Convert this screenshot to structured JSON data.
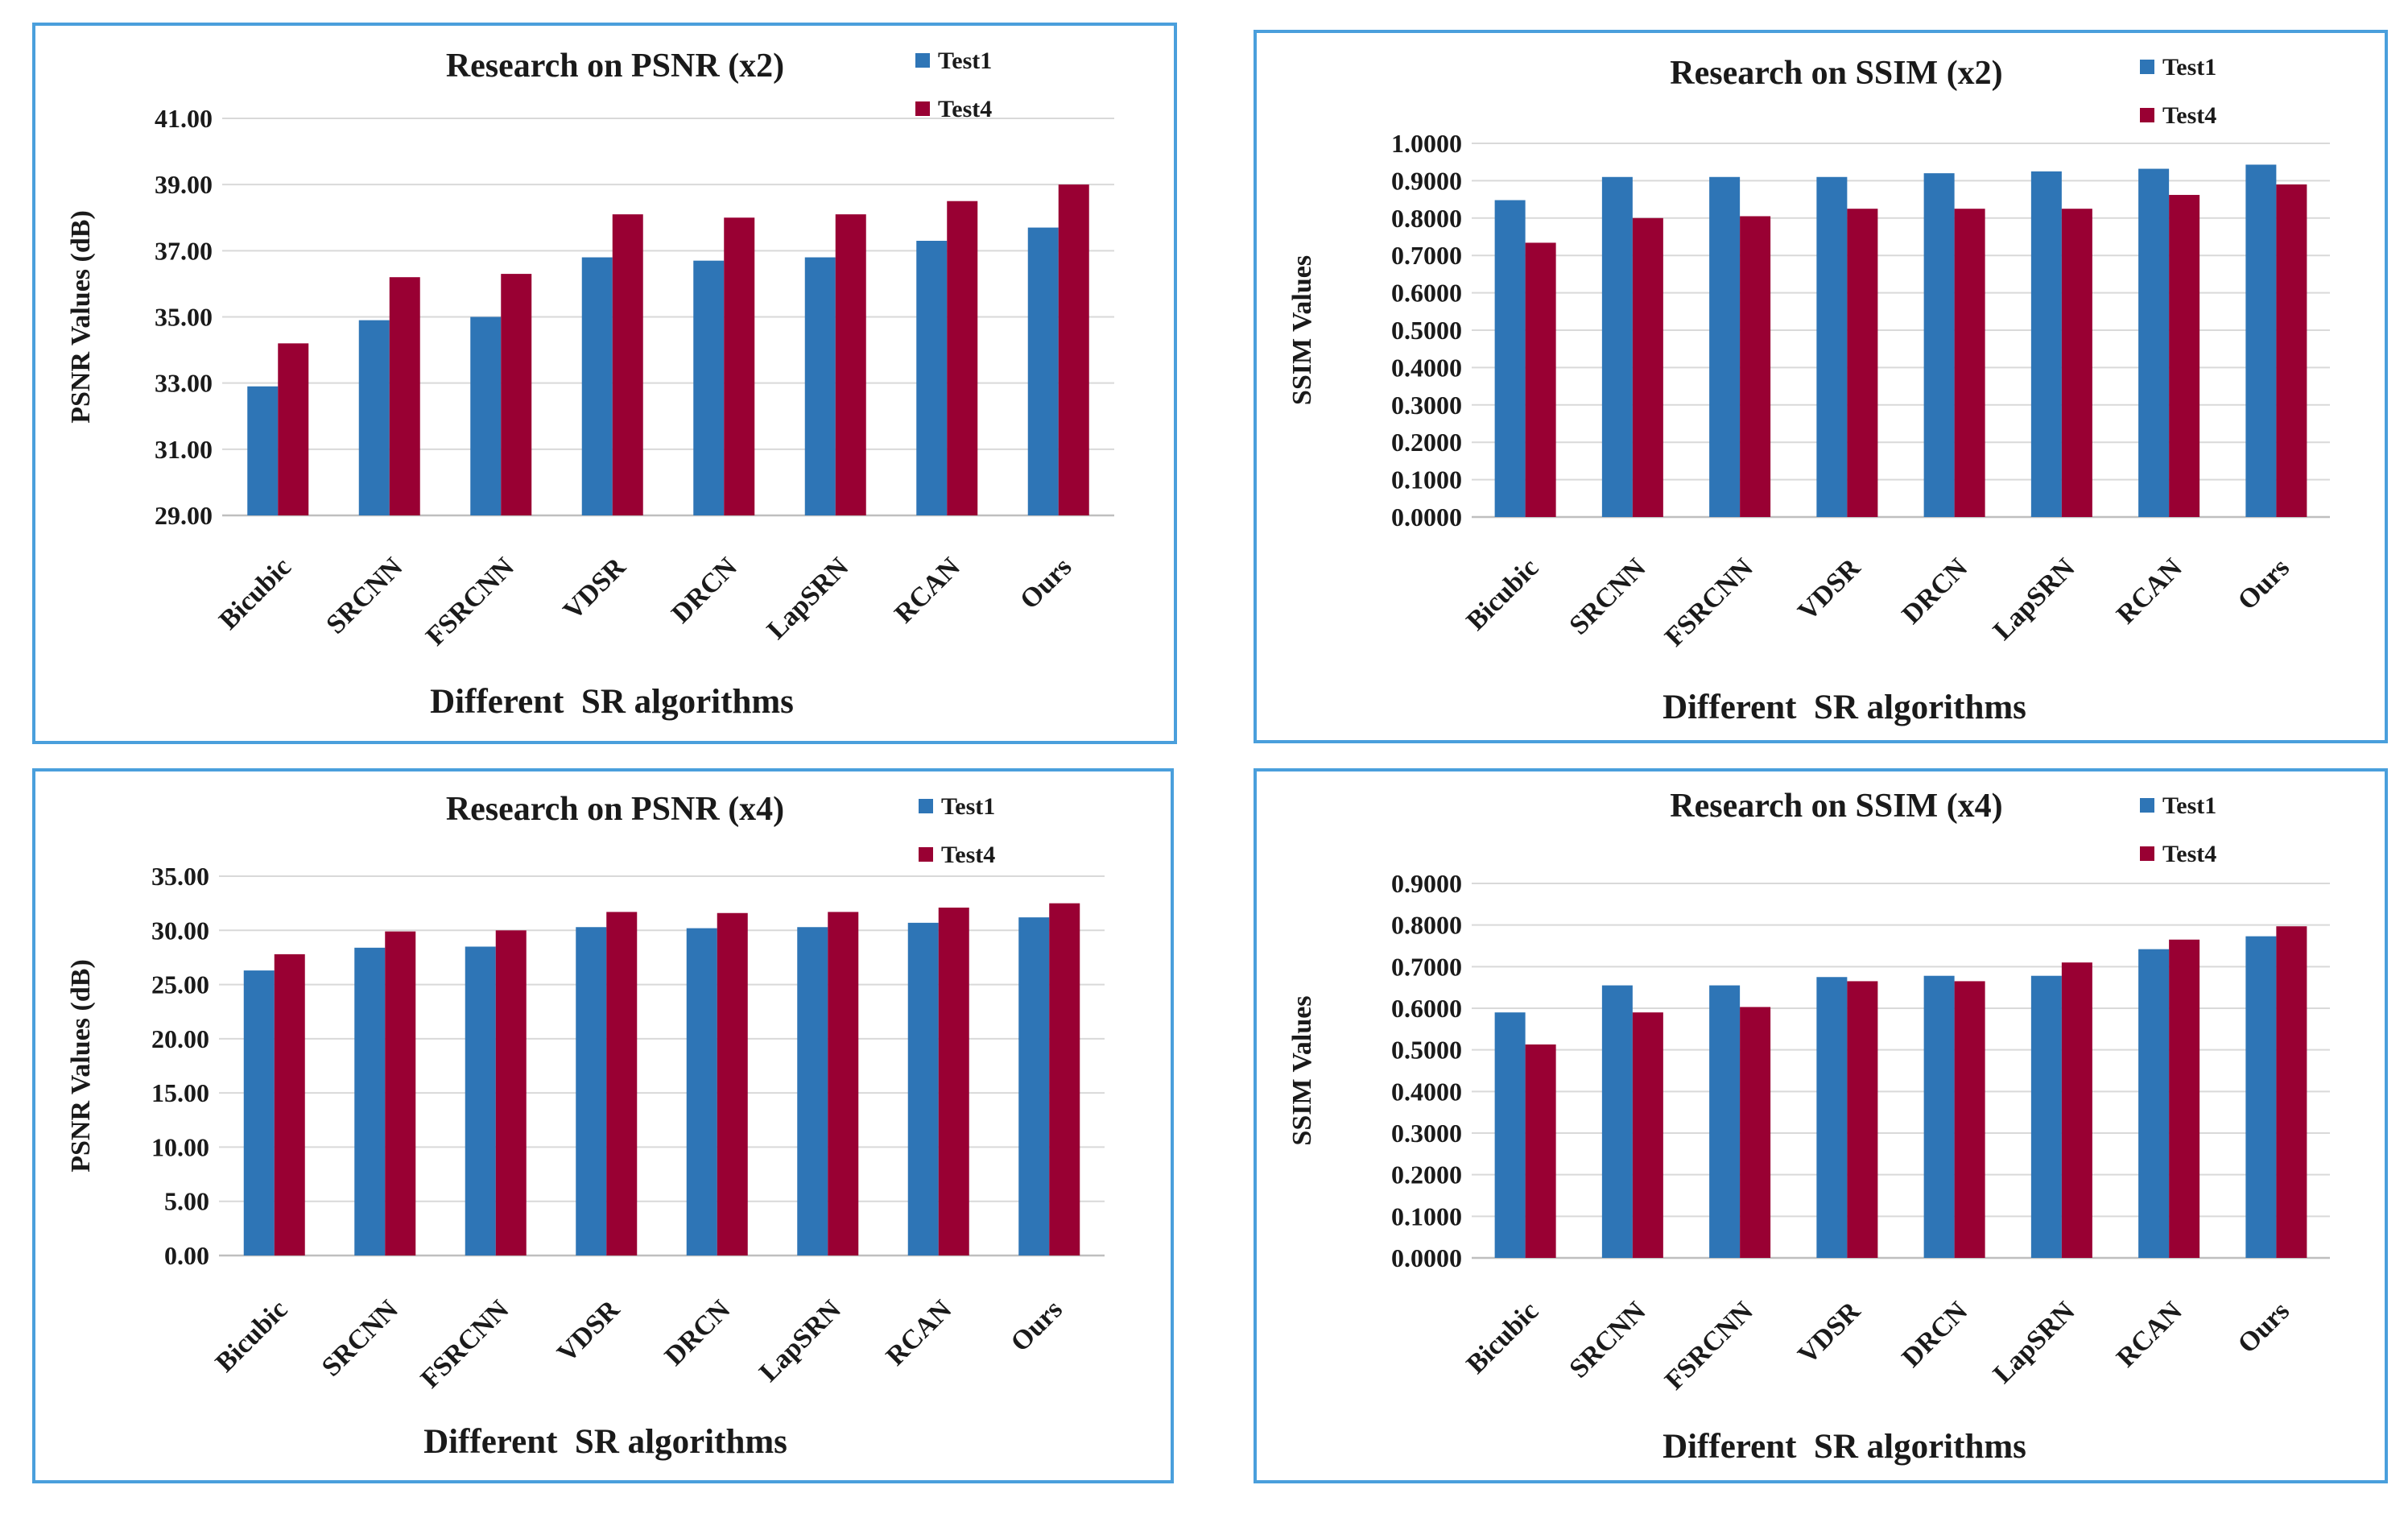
{
  "colors": {
    "test1": "#2e75b6",
    "test4": "#990033",
    "grid": "#d9d9d9",
    "border": "#4a9fdc"
  },
  "chart_data": [
    {
      "type": "bar",
      "title": "Research on PSNR (x2)",
      "xlabel": "Different  SR algorithms",
      "ylabel": "PSNR Values (dB)",
      "categories": [
        "Bicubic",
        "SRCNN",
        "FSRCNN",
        "VDSR",
        "DRCN",
        "LapSRN",
        "RCAN",
        "Ours"
      ],
      "ylim": [
        29,
        41
      ],
      "yticks": [
        "29.00",
        "31.00",
        "33.00",
        "35.00",
        "37.00",
        "39.00",
        "41.00"
      ],
      "grid": true,
      "legend": "top-right",
      "series": [
        {
          "name": "Test1",
          "values": [
            32.9,
            34.9,
            35.0,
            36.8,
            36.7,
            36.8,
            37.3,
            37.7
          ]
        },
        {
          "name": "Test4",
          "values": [
            34.2,
            36.2,
            36.3,
            38.1,
            38.0,
            38.1,
            38.5,
            39.0
          ]
        }
      ]
    },
    {
      "type": "bar",
      "title": "Research on SSIM (x2)",
      "xlabel": "Different  SR algorithms",
      "ylabel": "SSIM Values",
      "categories": [
        "Bicubic",
        "SRCNN",
        "FSRCNN",
        "VDSR",
        "DRCN",
        "LapSRN",
        "RCAN",
        "Ours"
      ],
      "ylim": [
        0,
        1
      ],
      "yticks": [
        "0.0000",
        "0.1000",
        "0.2000",
        "0.3000",
        "0.4000",
        "0.5000",
        "0.6000",
        "0.7000",
        "0.8000",
        "0.9000",
        "1.0000"
      ],
      "grid": true,
      "legend": "top-right",
      "series": [
        {
          "name": "Test1",
          "values": [
            0.848,
            0.91,
            0.91,
            0.91,
            0.92,
            0.925,
            0.932,
            0.943
          ]
        },
        {
          "name": "Test4",
          "values": [
            0.734,
            0.8,
            0.805,
            0.825,
            0.825,
            0.825,
            0.862,
            0.89
          ]
        }
      ]
    },
    {
      "type": "bar",
      "title": "Research on PSNR (x4)",
      "xlabel": "Different  SR algorithms",
      "ylabel": "PSNR Values (dB)",
      "categories": [
        "Bicubic",
        "SRCNN",
        "FSRCNN",
        "VDSR",
        "DRCN",
        "LapSRN",
        "RCAN",
        "Ours"
      ],
      "ylim": [
        0,
        35
      ],
      "yticks": [
        "0.00",
        "5.00",
        "10.00",
        "15.00",
        "20.00",
        "25.00",
        "30.00",
        "35.00"
      ],
      "grid": true,
      "legend": "top-right",
      "series": [
        {
          "name": "Test1",
          "values": [
            26.3,
            28.4,
            28.5,
            30.3,
            30.2,
            30.3,
            30.7,
            31.2
          ]
        },
        {
          "name": "Test4",
          "values": [
            27.8,
            29.9,
            30.0,
            31.7,
            31.6,
            31.7,
            32.1,
            32.5
          ]
        }
      ]
    },
    {
      "type": "bar",
      "title": "Research on SSIM (x4)",
      "xlabel": "Different  SR algorithms",
      "ylabel": "SSIM Values",
      "categories": [
        "Bicubic",
        "SRCNN",
        "FSRCNN",
        "VDSR",
        "DRCN",
        "LapSRN",
        "RCAN",
        "Ours"
      ],
      "ylim": [
        0,
        0.9
      ],
      "yticks": [
        "0.0000",
        "0.1000",
        "0.2000",
        "0.3000",
        "0.4000",
        "0.5000",
        "0.6000",
        "0.7000",
        "0.8000",
        "0.9000"
      ],
      "grid": true,
      "legend": "top-right",
      "series": [
        {
          "name": "Test1",
          "values": [
            0.59,
            0.655,
            0.655,
            0.675,
            0.678,
            0.678,
            0.742,
            0.773
          ]
        },
        {
          "name": "Test4",
          "values": [
            0.513,
            0.59,
            0.603,
            0.665,
            0.665,
            0.71,
            0.765,
            0.797
          ]
        }
      ]
    }
  ]
}
